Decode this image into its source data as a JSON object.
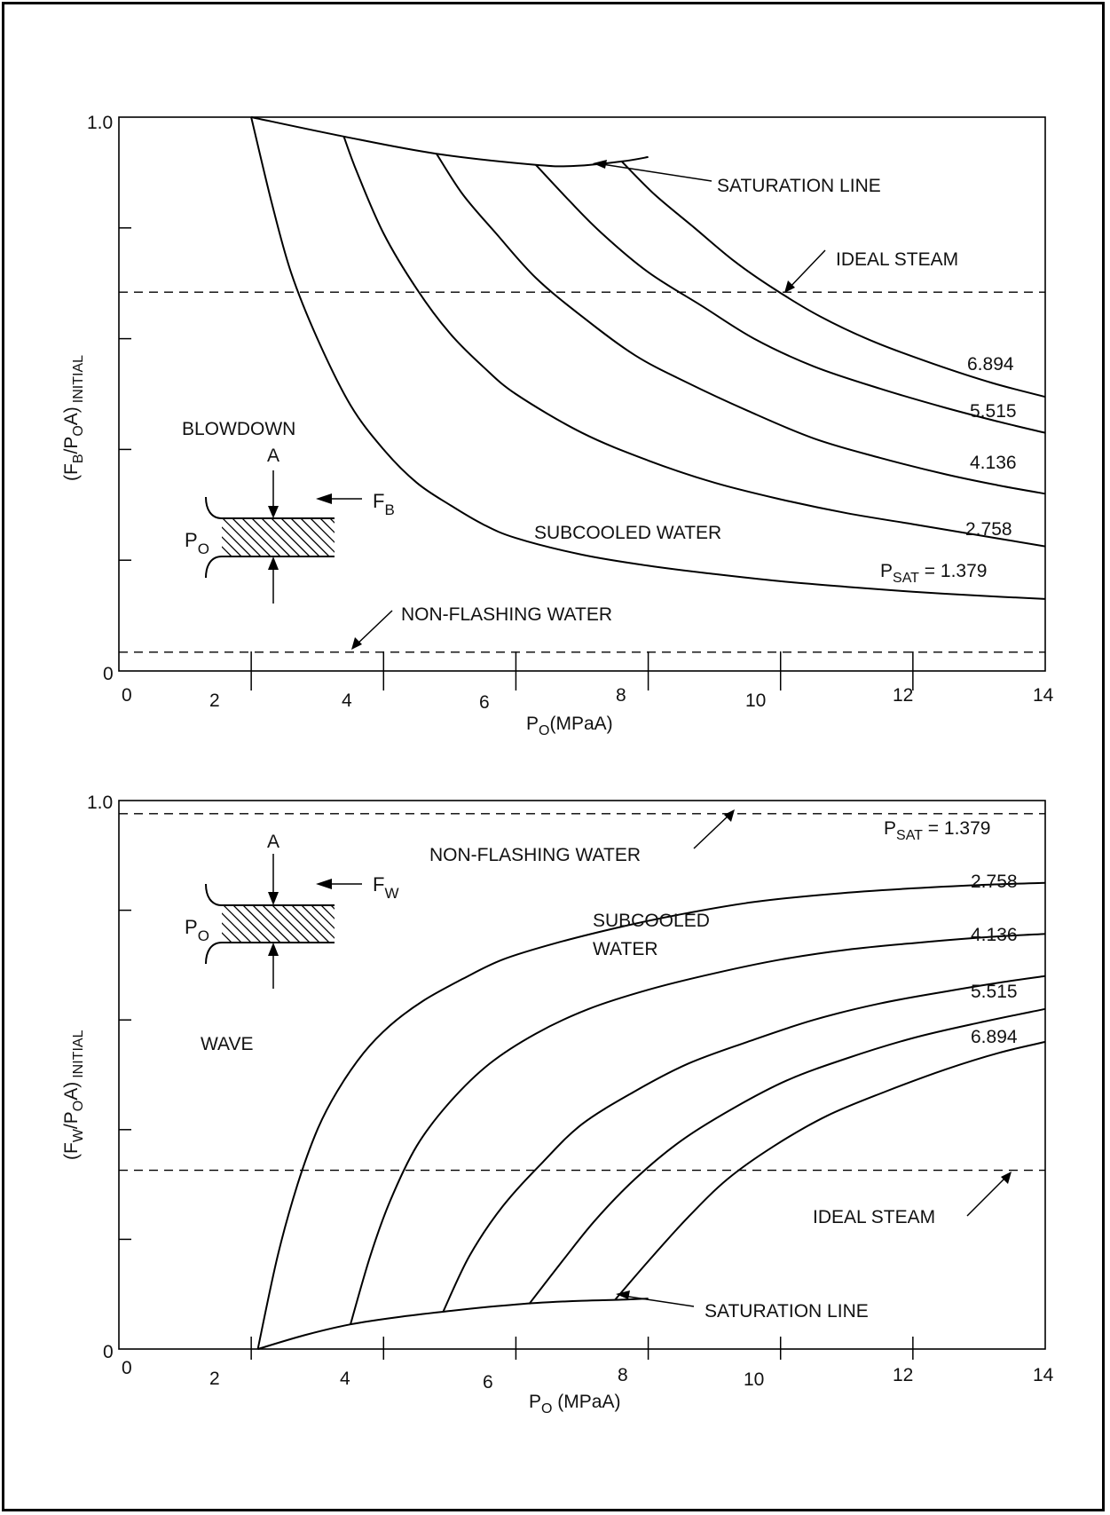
{
  "chart_data": [
    {
      "type": "line",
      "title": "",
      "xlabel": "P_O(MPaA)",
      "ylabel": "(F_B/P_OA)_INITIAL",
      "xlim": [
        0,
        14
      ],
      "ylim": [
        0,
        1.0
      ],
      "x_ticks": [
        "0",
        "2",
        "4",
        "6",
        "8",
        "10",
        "12",
        "14"
      ],
      "y_ticks": [
        "0",
        "1.0"
      ],
      "grid": false,
      "labels": {
        "sat_line": "SATURATION LINE",
        "ideal_steam": "IDEAL STEAM",
        "non_flashing": "NON-FLASHING WATER",
        "subcooled": "SUBCOOLED WATER",
        "mode": "BLOWDOWN",
        "inset_area": "A",
        "inset_force": "F",
        "inset_force_sub": "B",
        "inset_pressure": "P",
        "inset_pressure_sub": "O"
      },
      "reference_lines": [
        {
          "name": "IDEAL STEAM",
          "y": 0.684
        },
        {
          "name": "NON-FLASHING WATER",
          "y": 0.034
        }
      ],
      "saturation_line": {
        "x": [
          2.0,
          3.4,
          4.8,
          6.3,
          6.9,
          7.6,
          8.0
        ],
        "y": [
          1.0,
          0.965,
          0.934,
          0.914,
          0.912,
          0.92,
          0.928
        ]
      },
      "series": [
        {
          "name": "1.379",
          "label_prefix": "P",
          "label_sub": "SAT",
          "label_eq": " = ",
          "x": [
            2.0,
            2.3,
            2.6,
            3.0,
            3.5,
            4.0,
            4.5,
            5.0,
            5.5,
            6.0,
            7.0,
            8.0,
            9.0,
            10.0,
            11.0,
            12.0,
            13.0,
            14.0
          ],
          "y": [
            1.0,
            0.85,
            0.72,
            0.6,
            0.48,
            0.4,
            0.34,
            0.3,
            0.265,
            0.24,
            0.21,
            0.19,
            0.175,
            0.162,
            0.152,
            0.143,
            0.136,
            0.13
          ]
        },
        {
          "name": "2.758",
          "x": [
            3.4,
            3.6,
            4.0,
            4.5,
            5.0,
            5.5,
            6.0,
            7.0,
            8.0,
            9.0,
            10.0,
            11.0,
            12.0,
            13.0,
            14.0
          ],
          "y": [
            0.965,
            0.9,
            0.79,
            0.69,
            0.61,
            0.55,
            0.5,
            0.43,
            0.38,
            0.34,
            0.31,
            0.285,
            0.265,
            0.245,
            0.225
          ]
        },
        {
          "name": "4.136",
          "x": [
            4.8,
            5.2,
            5.7,
            6.3,
            7.0,
            7.8,
            8.6,
            9.5,
            10.5,
            11.5,
            12.5,
            13.3,
            14.0
          ],
          "y": [
            0.934,
            0.86,
            0.79,
            0.71,
            0.64,
            0.57,
            0.52,
            0.47,
            0.42,
            0.385,
            0.355,
            0.335,
            0.32
          ]
        },
        {
          "name": "5.515",
          "x": [
            6.3,
            6.8,
            7.3,
            8.0,
            8.8,
            9.6,
            10.5,
            11.5,
            12.5,
            13.3,
            14.0
          ],
          "y": [
            0.914,
            0.85,
            0.79,
            0.72,
            0.66,
            0.6,
            0.55,
            0.51,
            0.475,
            0.45,
            0.43
          ]
        },
        {
          "name": "6.894",
          "x": [
            7.6,
            8.1,
            8.7,
            9.3,
            9.9,
            10.6,
            11.4,
            12.3,
            13.2,
            14.0
          ],
          "y": [
            0.92,
            0.86,
            0.8,
            0.74,
            0.69,
            0.64,
            0.595,
            0.555,
            0.52,
            0.495
          ]
        }
      ]
    },
    {
      "type": "line",
      "title": "",
      "xlabel": "P_O (MPaA)",
      "ylabel": "(F_W/P_OA)_INITIAL",
      "xlim": [
        0,
        14
      ],
      "ylim": [
        0,
        1.0
      ],
      "x_ticks": [
        "0",
        "2",
        "4",
        "6",
        "8",
        "10",
        "12",
        "14"
      ],
      "y_ticks": [
        "0",
        "1.0"
      ],
      "grid": false,
      "labels": {
        "sat_line": "SATURATION LINE",
        "ideal_steam": "IDEAL STEAM",
        "non_flashing": "NON-FLASHING WATER",
        "subcooled_1": "SUBCOOLED",
        "subcooled_2": "WATER",
        "mode": "WAVE",
        "inset_area": "A",
        "inset_force": "F",
        "inset_force_sub": "W",
        "inset_pressure": "P",
        "inset_pressure_sub": "O"
      },
      "reference_lines": [
        {
          "name": "IDEAL STEAM",
          "y": 0.326
        },
        {
          "name": "NON-FLASHING WATER",
          "y": 0.976
        }
      ],
      "saturation_line": {
        "x": [
          2.1,
          2.8,
          3.5,
          4.2,
          4.9,
          5.6,
          6.3,
          7.0,
          7.6,
          8.0
        ],
        "y": [
          0.0,
          0.025,
          0.045,
          0.058,
          0.068,
          0.077,
          0.084,
          0.088,
          0.09,
          0.092
        ]
      },
      "series": [
        {
          "name": "1.379",
          "label_prefix": "P",
          "label_sub": "SAT",
          "label_eq": " = ",
          "x": [
            2.1,
            2.4,
            2.7,
            3.0,
            3.3,
            3.7,
            4.1,
            4.6,
            5.2,
            5.8,
            6.6,
            7.6,
            8.6,
            9.6,
            10.8,
            12.0,
            13.0,
            14.0
          ],
          "y": [
            0.0,
            0.17,
            0.3,
            0.4,
            0.47,
            0.54,
            0.59,
            0.635,
            0.675,
            0.71,
            0.74,
            0.77,
            0.795,
            0.815,
            0.83,
            0.84,
            0.846,
            0.85
          ]
        },
        {
          "name": "2.758",
          "x": [
            3.5,
            3.8,
            4.1,
            4.5,
            5.0,
            5.6,
            6.3,
            7.1,
            8.0,
            9.0,
            10.0,
            11.0,
            12.0,
            13.0,
            14.0
          ],
          "y": [
            0.045,
            0.17,
            0.27,
            0.37,
            0.45,
            0.52,
            0.575,
            0.62,
            0.655,
            0.685,
            0.71,
            0.728,
            0.74,
            0.75,
            0.757
          ]
        },
        {
          "name": "4.136",
          "x": [
            4.9,
            5.3,
            5.8,
            6.4,
            7.0,
            7.8,
            8.6,
            9.5,
            10.5,
            11.5,
            12.5,
            13.3,
            14.0
          ],
          "y": [
            0.068,
            0.17,
            0.26,
            0.34,
            0.41,
            0.47,
            0.52,
            0.56,
            0.6,
            0.63,
            0.652,
            0.668,
            0.68
          ]
        },
        {
          "name": "5.515",
          "x": [
            6.2,
            6.7,
            7.2,
            7.8,
            8.5,
            9.3,
            10.1,
            11.0,
            12.0,
            13.0,
            14.0
          ],
          "y": [
            0.082,
            0.16,
            0.235,
            0.31,
            0.38,
            0.44,
            0.49,
            0.53,
            0.567,
            0.595,
            0.62
          ]
        },
        {
          "name": "6.894",
          "x": [
            7.5,
            8.0,
            8.6,
            9.2,
            9.9,
            10.7,
            11.6,
            12.5,
            13.3,
            14.0
          ],
          "y": [
            0.09,
            0.16,
            0.24,
            0.31,
            0.37,
            0.425,
            0.47,
            0.51,
            0.54,
            0.56
          ]
        }
      ]
    }
  ]
}
